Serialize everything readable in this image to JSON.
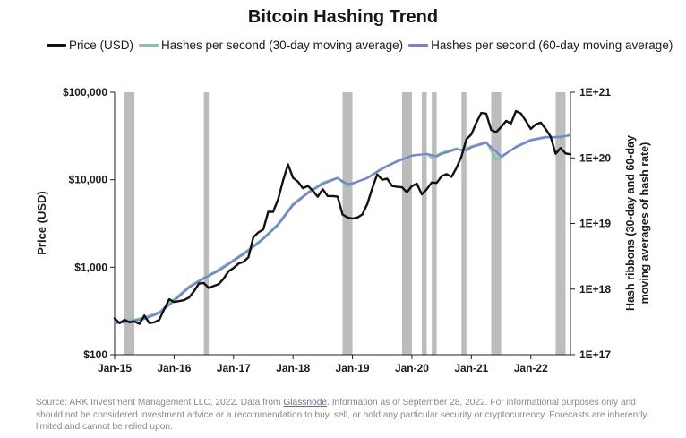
{
  "chart_data": {
    "type": "line",
    "title": "Bitcoin Hashing Trend",
    "ylabel": "Price (USD)",
    "y2label_line1": "Hash ribbons (30-day and 60-day",
    "y2label_line2": "moving averages of hash rate)",
    "y_scale": "log",
    "ylim": [
      100,
      100000
    ],
    "y_ticks": [
      100,
      1000,
      10000,
      100000
    ],
    "y_tick_labels": [
      "$100",
      "$1,000",
      "$10,000",
      "$100,000"
    ],
    "y2_scale": "log",
    "y2lim": [
      1e+17,
      1e+21
    ],
    "y2_ticks": [
      1e+17,
      1e+18,
      1e+19,
      1e+20,
      1e+21
    ],
    "y2_tick_labels": [
      "1E+17",
      "1E+18",
      "1E+19",
      "1E+20",
      "1E+21"
    ],
    "xlim": [
      "2015-01",
      "2022-09"
    ],
    "x_ticks": [
      "2015-01",
      "2016-01",
      "2017-01",
      "2018-01",
      "2019-01",
      "2020-01",
      "2021-01",
      "2022-01"
    ],
    "x_tick_labels": [
      "Jan-15",
      "Jan-16",
      "Jan-17",
      "Jan-18",
      "Jan-19",
      "Jan-20",
      "Jan-21",
      "Jan-22"
    ],
    "grid": false,
    "legend_position": "top",
    "shaded_periods": [
      [
        "2015-03",
        "2015-05"
      ],
      [
        "2016-07",
        "2016-08"
      ],
      [
        "2018-11",
        "2019-01"
      ],
      [
        "2019-11",
        "2020-01"
      ],
      [
        "2020-03",
        "2020-04"
      ],
      [
        "2020-05",
        "2020-06"
      ],
      [
        "2020-11",
        "2020-12"
      ],
      [
        "2021-05",
        "2021-07"
      ],
      [
        "2022-06",
        "2022-08"
      ]
    ],
    "shade_color": "#b0b0b0",
    "series": [
      {
        "name": "Price (USD)",
        "axis": "left",
        "color": "#111111",
        "x": [
          "2015-01",
          "2015-02",
          "2015-03",
          "2015-04",
          "2015-05",
          "2015-06",
          "2015-07",
          "2015-08",
          "2015-09",
          "2015-10",
          "2015-11",
          "2015-12",
          "2016-01",
          "2016-02",
          "2016-03",
          "2016-04",
          "2016-05",
          "2016-06",
          "2016-07",
          "2016-08",
          "2016-09",
          "2016-10",
          "2016-11",
          "2016-12",
          "2017-01",
          "2017-02",
          "2017-03",
          "2017-04",
          "2017-05",
          "2017-06",
          "2017-07",
          "2017-08",
          "2017-09",
          "2017-10",
          "2017-11",
          "2017-12",
          "2018-01",
          "2018-02",
          "2018-03",
          "2018-04",
          "2018-05",
          "2018-06",
          "2018-07",
          "2018-08",
          "2018-09",
          "2018-10",
          "2018-11",
          "2018-12",
          "2019-01",
          "2019-02",
          "2019-03",
          "2019-04",
          "2019-05",
          "2019-06",
          "2019-07",
          "2019-08",
          "2019-09",
          "2019-10",
          "2019-11",
          "2019-12",
          "2020-01",
          "2020-02",
          "2020-03",
          "2020-04",
          "2020-05",
          "2020-06",
          "2020-07",
          "2020-08",
          "2020-09",
          "2020-10",
          "2020-11",
          "2020-12",
          "2021-01",
          "2021-02",
          "2021-03",
          "2021-04",
          "2021-05",
          "2021-06",
          "2021-07",
          "2021-08",
          "2021-09",
          "2021-10",
          "2021-11",
          "2021-12",
          "2022-01",
          "2022-02",
          "2022-03",
          "2022-04",
          "2022-05",
          "2022-06",
          "2022-07",
          "2022-08",
          "2022-09"
        ],
        "values": [
          260,
          230,
          250,
          235,
          240,
          225,
          280,
          230,
          235,
          250,
          330,
          430,
          400,
          410,
          420,
          450,
          530,
          650,
          660,
          580,
          610,
          640,
          740,
          900,
          980,
          1100,
          1150,
          1300,
          2200,
          2500,
          2700,
          4300,
          4300,
          6000,
          9800,
          15000,
          10500,
          9500,
          8000,
          8500,
          7500,
          6400,
          7800,
          6500,
          6500,
          6400,
          4000,
          3700,
          3600,
          3700,
          4000,
          5300,
          8000,
          11500,
          10000,
          10300,
          8500,
          8300,
          8200,
          7200,
          8500,
          9000,
          6800,
          7800,
          9300,
          9200,
          11000,
          11600,
          10800,
          13700,
          18500,
          29000,
          33000,
          45000,
          58000,
          57000,
          37000,
          35000,
          40000,
          47000,
          44000,
          61000,
          57000,
          47000,
          38000,
          43000,
          45000,
          38000,
          31000,
          19800,
          23000,
          20000,
          19500
        ]
      },
      {
        "name": "Hashes per second (30-day moving average)",
        "axis": "right",
        "color": "#7ec99b",
        "x": [
          "2015-01",
          "2015-04",
          "2015-07",
          "2015-10",
          "2016-01",
          "2016-04",
          "2016-07",
          "2016-10",
          "2017-01",
          "2017-04",
          "2017-07",
          "2017-10",
          "2018-01",
          "2018-04",
          "2018-07",
          "2018-10",
          "2018-12",
          "2019-01",
          "2019-04",
          "2019-07",
          "2019-10",
          "2020-01",
          "2020-04",
          "2020-05",
          "2020-07",
          "2020-10",
          "2020-11",
          "2021-01",
          "2021-04",
          "2021-06",
          "2021-07",
          "2021-10",
          "2022-01",
          "2022-04",
          "2022-07",
          "2022-09"
        ],
        "values": [
          3.1e+17,
          3.3e+17,
          3.7e+17,
          4.5e+17,
          7e+17,
          1.1e+18,
          1.5e+18,
          2e+18,
          2.8e+18,
          4e+18,
          6e+18,
          1e+19,
          2e+19,
          3e+19,
          4.2e+19,
          5e+19,
          3.6e+19,
          4e+19,
          5e+19,
          7e+19,
          9e+19,
          1.1e+20,
          1.15e+20,
          1e+20,
          1.2e+20,
          1.4e+20,
          1.3e+20,
          1.5e+20,
          1.75e+20,
          9.5e+19,
          1e+20,
          1.5e+20,
          1.9e+20,
          2.1e+20,
          2e+20,
          2.3e+20
        ]
      },
      {
        "name": "Hashes per second (60-day moving average)",
        "axis": "right",
        "color": "#7b7fd4",
        "x": [
          "2015-01",
          "2015-04",
          "2015-07",
          "2015-10",
          "2016-01",
          "2016-04",
          "2016-07",
          "2016-10",
          "2017-01",
          "2017-04",
          "2017-07",
          "2017-10",
          "2018-01",
          "2018-04",
          "2018-07",
          "2018-10",
          "2018-12",
          "2019-01",
          "2019-04",
          "2019-07",
          "2019-10",
          "2020-01",
          "2020-04",
          "2020-06",
          "2020-07",
          "2020-10",
          "2020-12",
          "2021-01",
          "2021-04",
          "2021-06",
          "2021-07",
          "2021-10",
          "2022-01",
          "2022-04",
          "2022-07",
          "2022-09"
        ],
        "values": [
          3e+17,
          3.2e+17,
          3.5e+17,
          4.3e+17,
          6.6e+17,
          1.05e+18,
          1.45e+18,
          1.9e+18,
          2.7e+18,
          3.8e+18,
          5.8e+18,
          9.5e+18,
          1.9e+19,
          2.9e+19,
          4e+19,
          4.9e+19,
          4e+19,
          4.1e+19,
          4.9e+19,
          6.8e+19,
          8.8e+19,
          1.08e+20,
          1.15e+20,
          1.05e+20,
          1.15e+20,
          1.35e+20,
          1.3e+20,
          1.45e+20,
          1.7e+20,
          1.25e+20,
          1.05e+20,
          1.45e+20,
          1.85e+20,
          2.05e+20,
          2.1e+20,
          2.2e+20
        ]
      }
    ]
  },
  "source_note": {
    "prefix": "Source: ARK Investment Management LLC, 2022. Data from ",
    "link": "Glassnode",
    "suffix": ". Information as of September 28, 2022. For informational purposes only and should not be considered investment advice or a recommendation to buy, sell, or hold any particular security or cryptocurrency. Forecasts are inherently limited and cannot be relied upon."
  }
}
